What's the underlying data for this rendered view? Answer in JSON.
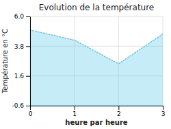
{
  "chart_data": {
    "type": "area",
    "title": "Evolution de la température",
    "xlabel": "heure par heure",
    "ylabel": "Température en °C",
    "x": [
      0,
      1,
      2,
      3
    ],
    "values": [
      5.0,
      4.25,
      2.5,
      4.7
    ],
    "color": "#5bc8e8",
    "line_style": "dotted",
    "xlim": [
      0,
      3
    ],
    "ylim": [
      -0.6,
      6.0
    ],
    "xticks": [
      0,
      1,
      2,
      3
    ],
    "yticks": [
      -0.6,
      1.6,
      3.8,
      {
        "value": 6.0,
        "label": "6.0"
      }
    ],
    "grid": true
  }
}
